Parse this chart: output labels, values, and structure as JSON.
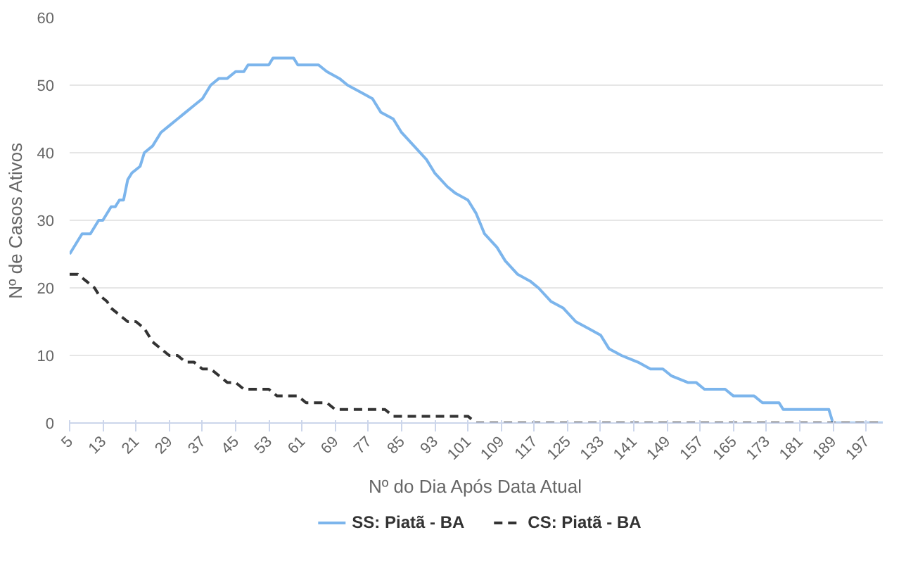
{
  "chart_data": {
    "type": "line",
    "xlabel": "Nº do Dia Após Data Atual",
    "ylabel": "Nº de Casos Ativos",
    "xlim": [
      5,
      201
    ],
    "xticks": [
      5,
      13,
      21,
      29,
      37,
      45,
      53,
      61,
      69,
      77,
      85,
      93,
      101,
      109,
      117,
      125,
      133,
      141,
      149,
      157,
      165,
      173,
      181,
      189,
      197
    ],
    "ylim": [
      0,
      60
    ],
    "yticks": [
      0,
      10,
      20,
      30,
      40,
      50,
      60
    ],
    "grid": "y",
    "legend": "bottom",
    "series": [
      {
        "name": "SS: Piatã - BA",
        "color": "#7cb5ec",
        "line_style": "solid",
        "x": [
          5,
          7,
          8,
          10,
          12,
          13,
          15,
          16,
          17,
          18,
          19,
          20,
          22,
          23,
          25,
          27,
          29,
          31,
          33,
          35,
          37,
          39,
          41,
          43,
          45,
          47,
          48,
          53,
          54,
          59,
          60,
          65,
          67,
          70,
          72,
          75,
          78,
          80,
          83,
          85,
          88,
          91,
          93,
          96,
          98,
          101,
          103,
          105,
          108,
          110,
          113,
          116,
          118,
          121,
          124,
          127,
          130,
          133,
          135,
          138,
          142,
          145,
          148,
          150,
          154,
          156,
          158,
          163,
          165,
          170,
          172,
          176,
          177,
          188,
          189,
          201
        ],
        "values": [
          25,
          27,
          28,
          28,
          30,
          30,
          32,
          32,
          33,
          33,
          36,
          37,
          38,
          40,
          41,
          43,
          44,
          45,
          46,
          47,
          48,
          50,
          51,
          51,
          52,
          52,
          53,
          53,
          54,
          54,
          53,
          53,
          52,
          51,
          50,
          49,
          48,
          46,
          45,
          43,
          41,
          39,
          37,
          35,
          34,
          33,
          31,
          28,
          26,
          24,
          22,
          21,
          20,
          18,
          17,
          15,
          14,
          13,
          11,
          10,
          9,
          8,
          8,
          7,
          6,
          6,
          5,
          5,
          4,
          4,
          3,
          3,
          2,
          2,
          0,
          0
        ]
      },
      {
        "name": "CS: Piatã - BA",
        "color": "#333333",
        "line_style": "dashed",
        "x": [
          5,
          7,
          9,
          11,
          12,
          14,
          15,
          17,
          19,
          21,
          23,
          25,
          27,
          29,
          31,
          33,
          35,
          37,
          39,
          41,
          43,
          45,
          47,
          53,
          55,
          60,
          62,
          67,
          69,
          81,
          83,
          101,
          103,
          201
        ],
        "values": [
          22,
          22,
          21,
          20,
          19,
          18,
          17,
          16,
          15,
          15,
          14,
          12,
          11,
          10,
          10,
          9,
          9,
          8,
          8,
          7,
          6,
          6,
          5,
          5,
          4,
          4,
          3,
          3,
          2,
          2,
          1,
          1,
          0,
          0
        ]
      }
    ]
  }
}
